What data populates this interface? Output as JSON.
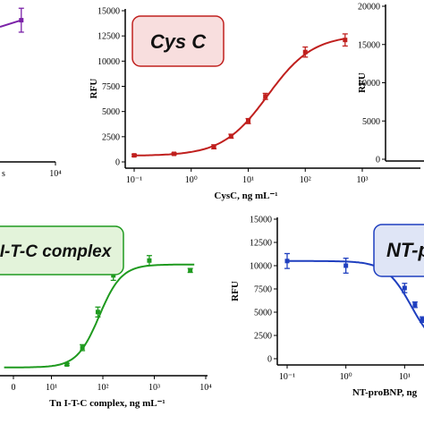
{
  "chart_data": [
    {
      "id": "top-left",
      "type": "line",
      "color": "#7b22a8",
      "xscale": "log",
      "x_tick_labels": [
        "10⁴"
      ],
      "x_tick_values": [
        10000
      ],
      "partial_tick_label": "s",
      "series": [
        {
          "x": [
            4000
          ],
          "y": [
            13600
          ],
          "err": [
            1200
          ]
        }
      ],
      "curve_end": 4000,
      "xlim": [
        100,
        10000
      ],
      "ylim": [
        0,
        15000
      ]
    },
    {
      "id": "top-middle",
      "type": "line",
      "title": "Cys C",
      "color": "#c0201e",
      "badge_fill": "#f8dede",
      "badge_stroke": "#c0201e",
      "xscale": "log",
      "xlabel": "CysC, ng mL⁻¹",
      "ylabel": "RFU",
      "x_tick_labels": [
        "10⁻¹",
        "10⁰",
        "10¹",
        "10²",
        "10³"
      ],
      "x_tick_values": [
        0.1,
        1,
        10,
        100,
        1000
      ],
      "y_tick_labels": [
        "0",
        "2500",
        "5000",
        "7500",
        "10000",
        "12500",
        "15000"
      ],
      "y_tick_values": [
        0,
        2500,
        5000,
        7500,
        10000,
        12500,
        15000
      ],
      "xlim": [
        0.1,
        1000
      ],
      "ylim": [
        0,
        15000
      ],
      "series": [
        {
          "x": [
            0.1,
            0.5,
            2.5,
            5,
            10,
            20,
            100,
            500
          ],
          "y": [
            650,
            800,
            1500,
            2550,
            4050,
            6500,
            10900,
            12100
          ],
          "err": [
            100,
            100,
            200,
            200,
            250,
            300,
            500,
            600
          ]
        }
      ],
      "fit": {
        "bottom": 600,
        "top": 12600,
        "ec50": 22,
        "hill": 1.1
      }
    },
    {
      "id": "top-right",
      "type": "line",
      "ylabel": "RFU",
      "color": "#333333",
      "y_tick_labels": [
        "0",
        "5000",
        "10000",
        "15000",
        "20000"
      ],
      "y_tick_values": [
        0,
        5000,
        10000,
        15000,
        20000
      ],
      "ylim": [
        0,
        20000
      ]
    },
    {
      "id": "bottom-left",
      "type": "line",
      "title": "I-T-C complex",
      "color": "#1f9a1f",
      "badge_fill": "#e3f3da",
      "badge_stroke": "#1f9a1f",
      "xscale": "log",
      "xlabel": "Tn I-T-C complex, ng mL⁻¹",
      "x_tick_labels": [
        "0",
        "10¹",
        "10²",
        "10³",
        "10⁴"
      ],
      "x_tick_values": [
        1,
        10,
        100,
        1000,
        10000
      ],
      "xlim": [
        1,
        10000
      ],
      "ylim": [
        0,
        15000
      ],
      "series": [
        {
          "x": [
            20,
            40,
            80,
            160,
            800,
            5000
          ],
          "y": [
            500,
            2200,
            5800,
            9500,
            11000,
            10000
          ],
          "err": [
            100,
            300,
            500,
            500,
            500,
            200
          ]
        }
      ],
      "fit": {
        "bottom": 200,
        "top": 10600,
        "ec50": 85,
        "hill": 2.0
      }
    },
    {
      "id": "bottom-right",
      "type": "line",
      "title": "NT-p",
      "color": "#1f3fbf",
      "badge_fill": "#dfe5f6",
      "badge_stroke": "#1f3fbf",
      "xscale": "log",
      "xlabel": "NT-proBNP, ng",
      "ylabel": "RFU",
      "x_tick_labels": [
        "10⁻¹",
        "10⁰",
        "10¹",
        "10²"
      ],
      "x_tick_values": [
        0.1,
        1,
        10,
        100
      ],
      "y_tick_labels": [
        "0",
        "2500",
        "5000",
        "7500",
        "10000",
        "12500",
        "15000"
      ],
      "y_tick_values": [
        0,
        2500,
        5000,
        7500,
        10000,
        12500,
        15000
      ],
      "xlim": [
        0.1,
        100
      ],
      "ylim": [
        0,
        15000
      ],
      "series": [
        {
          "x": [
            0.1,
            1,
            10,
            15,
            20,
            30,
            60
          ],
          "y": [
            10500,
            10000,
            7600,
            5800,
            4200,
            3000,
            1600
          ],
          "err": [
            800,
            800,
            500,
            300,
            300,
            300,
            200
          ]
        }
      ],
      "fit": {
        "bottom": 800,
        "top": 10500,
        "ec50": 13,
        "hill": -2.0
      }
    }
  ]
}
